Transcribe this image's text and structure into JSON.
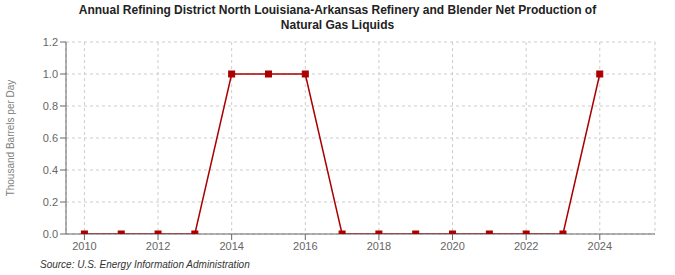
{
  "chart_data": {
    "type": "line",
    "title": "Annual Refining District North Louisiana-Arkansas Refinery and Blender Net Production of\nNatural Gas Liquids",
    "y_label": "Thousand Barrels per Day",
    "annotations": [
      "Source: U.S. Energy Information Administration"
    ],
    "x": [
      2010,
      2011,
      2012,
      2013,
      2014,
      2015,
      2016,
      2017,
      2018,
      2019,
      2020,
      2021,
      2022,
      2023,
      2024
    ],
    "values": [
      0.0,
      0.0,
      0.0,
      0.0,
      1.0,
      1.0,
      1.0,
      0.0,
      0.0,
      0.0,
      0.0,
      0.0,
      0.0,
      0.0,
      1.0
    ],
    "color": "#aa0000",
    "marker": "square",
    "xlim": [
      2009.5,
      2025.5
    ],
    "xticks": [
      2010,
      2012,
      2014,
      2016,
      2018,
      2020,
      2022,
      2024
    ],
    "ylim": [
      0.0,
      1.2
    ],
    "yticks": [
      {
        "value": 0.0,
        "label": "0.0"
      },
      0.2,
      0.4,
      0.6,
      0.8,
      {
        "value": 1.0,
        "label": "1.0"
      },
      1.2
    ],
    "grid": true
  }
}
